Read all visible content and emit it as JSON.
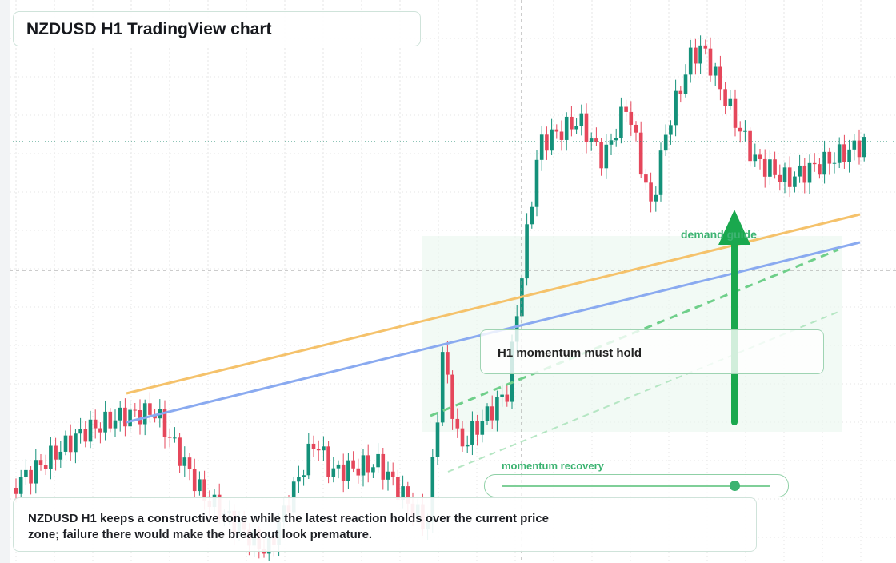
{
  "header": {
    "title": "NZDUSD H1 TradingView chart"
  },
  "annotations": {
    "zone_label": "demand guide",
    "note": "H1 momentum must hold",
    "slider_label": "momentum recovery"
  },
  "caption": {
    "text": "NZDUSD H1 keeps a constructive tone while the latest reaction holds over the current price zone; failure there would make the breakout look premature."
  }
}
